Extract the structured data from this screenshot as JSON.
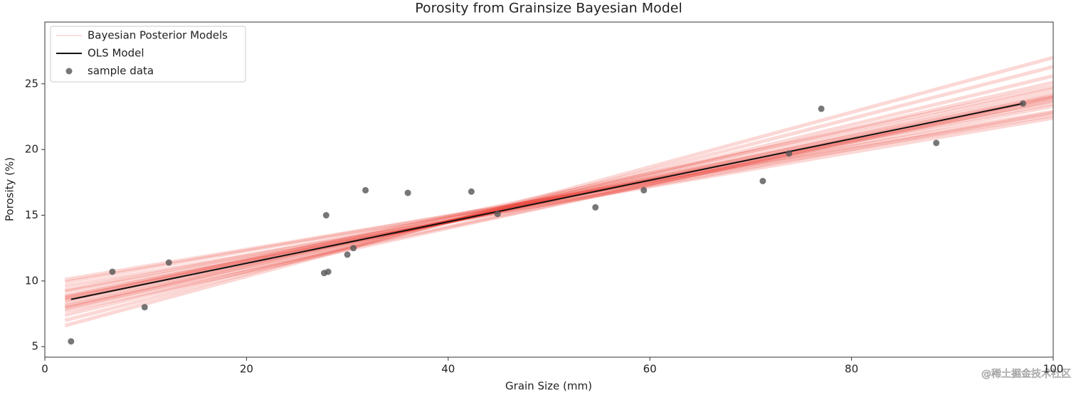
{
  "chart_data": {
    "type": "scatter",
    "title": "Porosity from Grainsize Bayesian Model",
    "xlabel": "Grain Size (mm)",
    "ylabel": "Porosity (%)",
    "xlim": [
      0,
      100
    ],
    "ylim": [
      4.2,
      29.7
    ],
    "xticks": [
      0,
      20,
      40,
      60,
      80,
      100
    ],
    "yticks": [
      5,
      10,
      15,
      20,
      25
    ],
    "posterior": {
      "name": "Bayesian Posterior Models",
      "color": "#e8251c",
      "x": [
        2,
        100
      ],
      "lines": [
        [
          8.5,
          24.0
        ],
        [
          9.2,
          22.8
        ],
        [
          7.9,
          25.1
        ],
        [
          8.9,
          23.3
        ],
        [
          8.1,
          24.6
        ],
        [
          9.6,
          22.4
        ],
        [
          7.4,
          25.6
        ],
        [
          8.7,
          23.7
        ],
        [
          8.3,
          24.3
        ],
        [
          9.9,
          22.9
        ],
        [
          7.0,
          26.3
        ],
        [
          8.6,
          24.8
        ],
        [
          9.3,
          23.5
        ],
        [
          7.7,
          24.0
        ],
        [
          10.1,
          22.6
        ],
        [
          6.6,
          27.0
        ],
        [
          8.8,
          24.1
        ],
        [
          8.0,
          23.8
        ]
      ]
    },
    "ols": {
      "name": "OLS Model",
      "color": "#111111",
      "x": [
        2.6,
        97.0
      ],
      "values": [
        8.6,
        23.5
      ]
    },
    "scatter": {
      "name": "sample data",
      "color": "#555555",
      "x": [
        2.6,
        6.7,
        9.9,
        12.3,
        27.7,
        28.1,
        27.9,
        30.0,
        30.6,
        31.8,
        36.0,
        42.3,
        44.9,
        54.6,
        59.4,
        71.2,
        73.8,
        77.0,
        88.4,
        97.0
      ],
      "values": [
        5.4,
        10.7,
        8.0,
        11.4,
        10.6,
        10.7,
        15.0,
        12.0,
        12.5,
        16.9,
        16.7,
        16.8,
        15.1,
        15.6,
        16.9,
        17.6,
        19.7,
        23.1,
        20.5,
        23.5
      ]
    },
    "legend": "upper left",
    "watermark": "@稀土掘金技术社区"
  }
}
